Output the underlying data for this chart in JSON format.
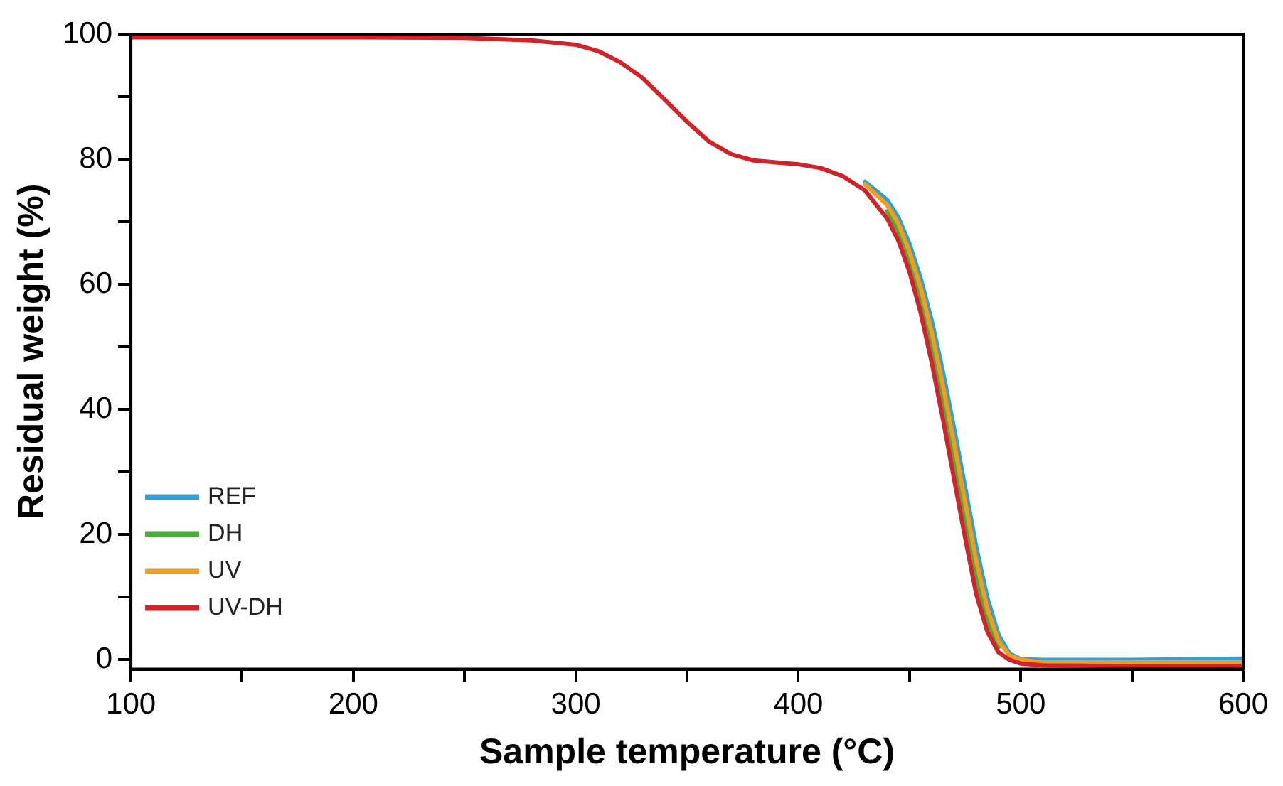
{
  "chart_data": {
    "type": "line",
    "xlabel": "Sample temperature (°C)",
    "ylabel": "Residual weight (%)",
    "x": [
      100,
      150,
      200,
      250,
      280,
      300,
      310,
      320,
      330,
      340,
      350,
      360,
      370,
      380,
      390,
      400,
      410,
      420,
      430,
      440,
      445,
      450,
      455,
      460,
      465,
      470,
      475,
      480,
      485,
      490,
      495,
      500,
      510,
      550,
      600
    ],
    "series": [
      {
        "name": "REF",
        "color": "#2aa4d8",
        "x": [
          430,
          440,
          445,
          450,
          455,
          460,
          465,
          470,
          475,
          480,
          485,
          490,
          495,
          500,
          510,
          550,
          600
        ],
        "values": [
          76.4,
          73.5,
          70.7,
          66.5,
          61,
          54.2,
          46.1,
          37.1,
          27.6,
          18.1,
          9.9,
          4,
          1,
          0.1,
          0,
          0,
          0.2
        ]
      },
      {
        "name": "DH",
        "color": "#4aaa3a",
        "x": [
          440,
          445,
          450,
          455,
          460,
          465,
          470,
          475,
          480,
          485,
          490
        ],
        "values": [
          71.7,
          68.5,
          63.8,
          57.7,
          50,
          41.3,
          31.9,
          22.3,
          13,
          6.2,
          2
        ]
      },
      {
        "name": "UV",
        "color": "#f39c1f",
        "x": [
          430,
          440,
          445,
          450,
          455,
          460,
          465,
          470,
          475,
          480,
          485,
          490,
          495,
          500,
          510,
          550,
          600
        ],
        "values": [
          76,
          72.7,
          69.7,
          65.2,
          59.5,
          52.3,
          43.9,
          34.7,
          25.2,
          15.8,
          8.1,
          3,
          0.7,
          0,
          -0.4,
          -0.4,
          -0.4
        ]
      },
      {
        "name": "UV-DH",
        "color": "#d2232a",
        "values": [
          99.5,
          99.5,
          99.5,
          99.4,
          99,
          98.3,
          97.3,
          95.5,
          93,
          89.5,
          86,
          82.8,
          80.8,
          79.8,
          79.5,
          79.2,
          78.6,
          77.3,
          75,
          70.5,
          67,
          62,
          55.5,
          47.5,
          38.5,
          29,
          19.5,
          10.5,
          4.5,
          1.2,
          0,
          -0.6,
          -0.9,
          -1,
          -1
        ]
      }
    ],
    "xlim": [
      100,
      600
    ],
    "ylim": [
      -1.5,
      100
    ],
    "xticks": [
      100,
      {
        "value": 150,
        "label": null
      },
      200,
      {
        "value": 250,
        "label": null
      },
      300,
      {
        "value": 350,
        "label": null
      },
      400,
      {
        "value": 450,
        "label": null
      },
      500,
      {
        "value": 550,
        "label": null
      },
      600
    ],
    "yticks": [
      0,
      {
        "value": 10,
        "label": null
      },
      20,
      {
        "value": 30,
        "label": null
      },
      40,
      {
        "value": 50,
        "label": null
      },
      60,
      {
        "value": 70,
        "label": null
      },
      80,
      {
        "value": 90,
        "label": null
      },
      100
    ],
    "grid": false,
    "legend": "bottom left",
    "marker": "none",
    "line_style": "solid"
  }
}
